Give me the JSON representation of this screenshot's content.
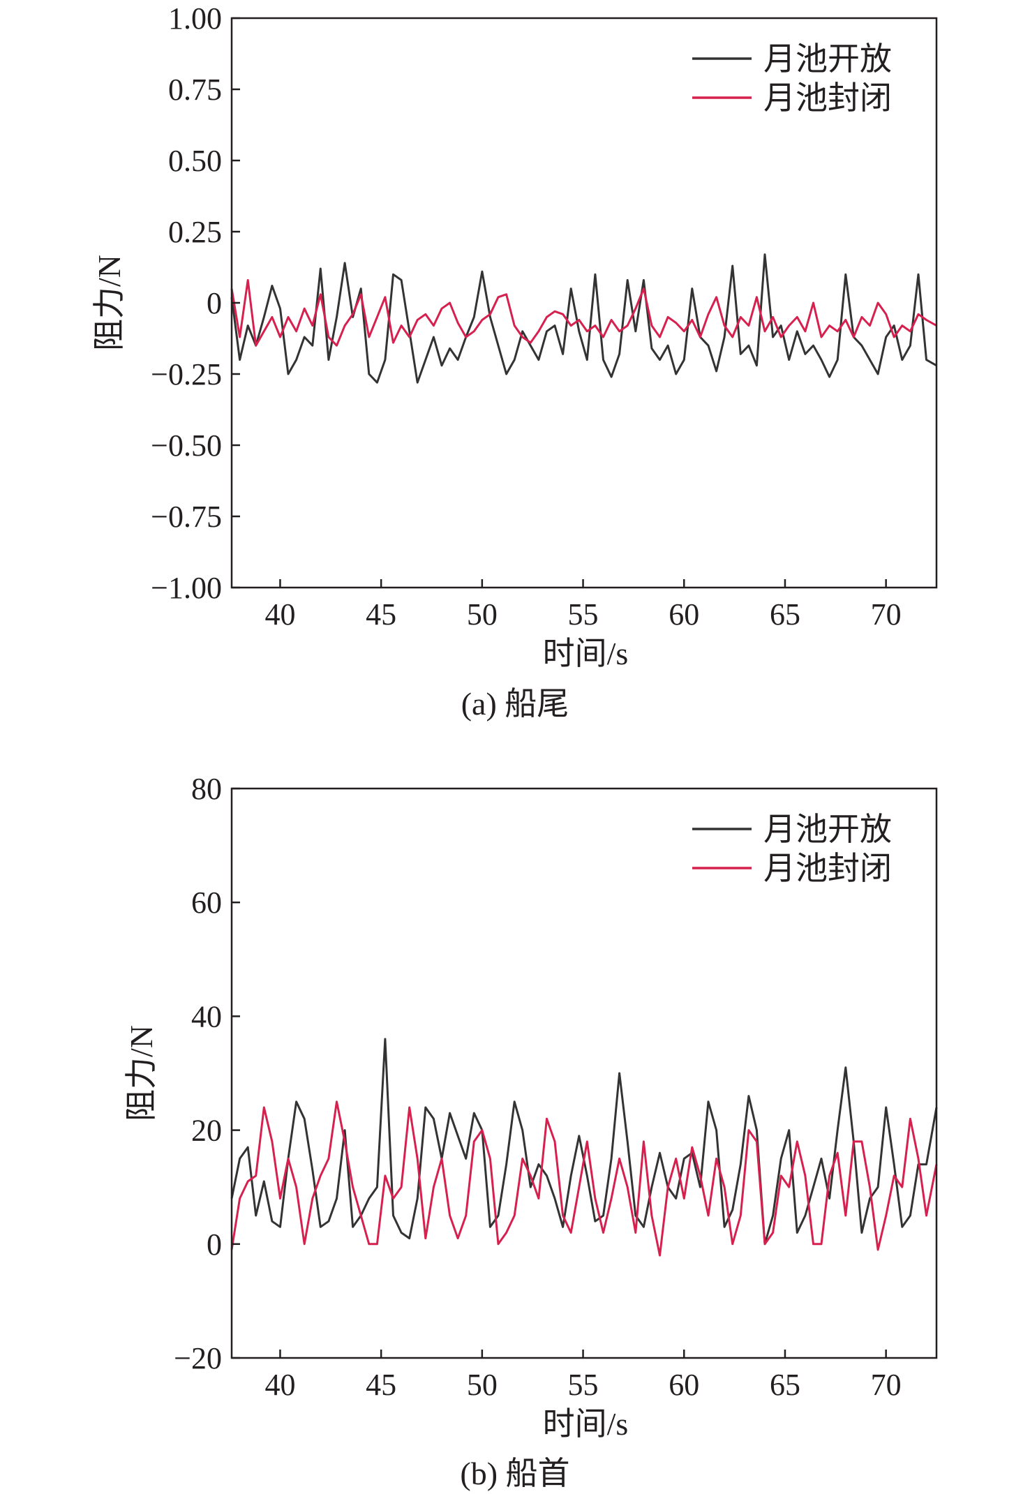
{
  "chart_data": [
    {
      "type": "line",
      "caption": "(a) 船尾",
      "xlabel": "时间/s",
      "ylabel": "阻力/N",
      "xlim": [
        37.6,
        72.5
      ],
      "ylim": [
        -1.0,
        1.0
      ],
      "xticks": [
        40,
        45,
        50,
        55,
        60,
        65,
        70
      ],
      "yticks": [
        1.0,
        0.75,
        0.5,
        0.25,
        0,
        -0.25,
        -0.5,
        -0.75,
        -1.0
      ],
      "ytick_labels": [
        "1.00",
        "0.75",
        "0.50",
        "0.25",
        "0",
        "−0.25",
        "−0.50",
        "−0.75",
        "−1.00"
      ],
      "legend": "top-right",
      "grid": false,
      "series": [
        {
          "name": "月池开放",
          "color": "#333333",
          "x": [
            37.6,
            38.0,
            38.4,
            38.8,
            39.2,
            39.6,
            40.0,
            40.4,
            40.8,
            41.2,
            41.6,
            42.0,
            42.4,
            42.8,
            43.2,
            43.6,
            44.0,
            44.4,
            44.8,
            45.2,
            45.6,
            46.0,
            46.4,
            46.8,
            47.2,
            47.6,
            48.0,
            48.4,
            48.8,
            49.2,
            49.6,
            50.0,
            50.4,
            50.8,
            51.2,
            51.6,
            52.0,
            52.4,
            52.8,
            53.2,
            53.6,
            54.0,
            54.4,
            54.8,
            55.2,
            55.6,
            56.0,
            56.4,
            56.8,
            57.2,
            57.6,
            58.0,
            58.4,
            58.8,
            59.2,
            59.6,
            60.0,
            60.4,
            60.8,
            61.2,
            61.6,
            62.0,
            62.4,
            62.8,
            63.2,
            63.6,
            64.0,
            64.4,
            64.8,
            65.2,
            65.6,
            66.0,
            66.4,
            66.8,
            67.2,
            67.6,
            68.0,
            68.4,
            68.8,
            69.2,
            69.6,
            70.0,
            70.4,
            70.8,
            71.2,
            71.6,
            72.0,
            72.5
          ],
          "values": [
            0.02,
            -0.2,
            -0.08,
            -0.15,
            -0.05,
            0.06,
            -0.02,
            -0.25,
            -0.2,
            -0.12,
            -0.15,
            0.12,
            -0.2,
            -0.05,
            0.14,
            -0.05,
            0.05,
            -0.25,
            -0.28,
            -0.2,
            0.1,
            0.08,
            -0.1,
            -0.28,
            -0.2,
            -0.12,
            -0.22,
            -0.16,
            -0.2,
            -0.12,
            -0.05,
            0.11,
            -0.05,
            -0.15,
            -0.25,
            -0.2,
            -0.1,
            -0.15,
            -0.2,
            -0.1,
            -0.08,
            -0.18,
            0.05,
            -0.1,
            -0.2,
            0.1,
            -0.2,
            -0.26,
            -0.18,
            0.08,
            -0.1,
            0.08,
            -0.16,
            -0.2,
            -0.15,
            -0.25,
            -0.2,
            0.05,
            -0.12,
            -0.15,
            -0.24,
            -0.12,
            0.13,
            -0.18,
            -0.15,
            -0.22,
            0.17,
            -0.12,
            -0.08,
            -0.2,
            -0.1,
            -0.18,
            -0.15,
            -0.2,
            -0.26,
            -0.2,
            0.1,
            -0.12,
            -0.15,
            -0.2,
            -0.25,
            -0.12,
            -0.08,
            -0.2,
            -0.15,
            0.1,
            -0.2,
            -0.22
          ]
        },
        {
          "name": "月池封闭",
          "color": "#d6204e",
          "x": [
            37.6,
            38.0,
            38.4,
            38.8,
            39.2,
            39.6,
            40.0,
            40.4,
            40.8,
            41.2,
            41.6,
            42.0,
            42.4,
            42.8,
            43.2,
            43.6,
            44.0,
            44.4,
            44.8,
            45.2,
            45.6,
            46.0,
            46.4,
            46.8,
            47.2,
            47.6,
            48.0,
            48.4,
            48.8,
            49.2,
            49.6,
            50.0,
            50.4,
            50.8,
            51.2,
            51.6,
            52.0,
            52.4,
            52.8,
            53.2,
            53.6,
            54.0,
            54.4,
            54.8,
            55.2,
            55.6,
            56.0,
            56.4,
            56.8,
            57.2,
            57.6,
            58.0,
            58.4,
            58.8,
            59.2,
            59.6,
            60.0,
            60.4,
            60.8,
            61.2,
            61.6,
            62.0,
            62.4,
            62.8,
            63.2,
            63.6,
            64.0,
            64.4,
            64.8,
            65.2,
            65.6,
            66.0,
            66.4,
            66.8,
            67.2,
            67.6,
            68.0,
            68.4,
            68.8,
            69.2,
            69.6,
            70.0,
            70.4,
            70.8,
            71.2,
            71.6,
            72.0,
            72.5
          ],
          "values": [
            0.05,
            -0.12,
            0.08,
            -0.15,
            -0.1,
            -0.05,
            -0.12,
            -0.05,
            -0.1,
            -0.02,
            -0.08,
            0.03,
            -0.12,
            -0.15,
            -0.08,
            -0.04,
            0.03,
            -0.12,
            -0.05,
            0.02,
            -0.14,
            -0.08,
            -0.12,
            -0.06,
            -0.04,
            -0.08,
            -0.02,
            0.0,
            -0.07,
            -0.12,
            -0.1,
            -0.06,
            -0.04,
            0.02,
            0.03,
            -0.08,
            -0.12,
            -0.14,
            -0.1,
            -0.05,
            -0.03,
            -0.04,
            -0.08,
            -0.06,
            -0.1,
            -0.08,
            -0.12,
            -0.06,
            -0.1,
            -0.08,
            -0.02,
            0.05,
            -0.08,
            -0.12,
            -0.05,
            -0.07,
            -0.1,
            -0.06,
            -0.12,
            -0.04,
            0.02,
            -0.08,
            -0.12,
            -0.05,
            -0.08,
            0.02,
            -0.1,
            -0.05,
            -0.12,
            -0.08,
            -0.05,
            -0.1,
            0.0,
            -0.12,
            -0.08,
            -0.1,
            -0.06,
            -0.12,
            -0.05,
            -0.08,
            0.0,
            -0.04,
            -0.12,
            -0.08,
            -0.1,
            -0.04,
            -0.06,
            -0.08
          ]
        }
      ]
    },
    {
      "type": "line",
      "caption": "(b) 船首",
      "xlabel": "时间/s",
      "ylabel": "阻力/N",
      "xlim": [
        37.6,
        72.5
      ],
      "ylim": [
        -20,
        80
      ],
      "xticks": [
        40,
        45,
        50,
        55,
        60,
        65,
        70
      ],
      "yticks": [
        80,
        60,
        40,
        20,
        0,
        -20
      ],
      "ytick_labels": [
        "80",
        "60",
        "40",
        "20",
        "0",
        "−20"
      ],
      "legend": "top-right",
      "grid": false,
      "series": [
        {
          "name": "月池开放",
          "color": "#333333",
          "x": [
            37.6,
            38.0,
            38.4,
            38.8,
            39.2,
            39.6,
            40.0,
            40.4,
            40.8,
            41.2,
            41.6,
            42.0,
            42.4,
            42.8,
            43.2,
            43.6,
            44.0,
            44.4,
            44.8,
            45.2,
            45.6,
            46.0,
            46.4,
            46.8,
            47.2,
            47.6,
            48.0,
            48.4,
            48.8,
            49.2,
            49.6,
            50.0,
            50.4,
            50.8,
            51.2,
            51.6,
            52.0,
            52.4,
            52.8,
            53.2,
            53.6,
            54.0,
            54.4,
            54.8,
            55.2,
            55.6,
            56.0,
            56.4,
            56.8,
            57.2,
            57.6,
            58.0,
            58.4,
            58.8,
            59.2,
            59.6,
            60.0,
            60.4,
            60.8,
            61.2,
            61.6,
            62.0,
            62.4,
            62.8,
            63.2,
            63.6,
            64.0,
            64.4,
            64.8,
            65.2,
            65.6,
            66.0,
            66.4,
            66.8,
            67.2,
            67.6,
            68.0,
            68.4,
            68.8,
            69.2,
            69.6,
            70.0,
            70.4,
            70.8,
            71.2,
            71.6,
            72.0,
            72.5
          ],
          "values": [
            8,
            15,
            17,
            5,
            11,
            4,
            3,
            15,
            25,
            22,
            13,
            3,
            4,
            8,
            20,
            3,
            5,
            8,
            10,
            36,
            5,
            2,
            1,
            8,
            24,
            22,
            15,
            23,
            19,
            15,
            23,
            20,
            3,
            5,
            14,
            25,
            20,
            10,
            14,
            12,
            8,
            3,
            12,
            19,
            12,
            4,
            5,
            15,
            30,
            18,
            5,
            3,
            10,
            16,
            10,
            8,
            15,
            16,
            10,
            25,
            20,
            3,
            6,
            14,
            26,
            20,
            0,
            5,
            15,
            20,
            2,
            5,
            10,
            15,
            8,
            20,
            31,
            18,
            2,
            8,
            10,
            24,
            14,
            3,
            5,
            14,
            14,
            24
          ]
        },
        {
          "name": "月池封闭",
          "color": "#d6204e",
          "x": [
            37.6,
            38.0,
            38.4,
            38.8,
            39.2,
            39.6,
            40.0,
            40.4,
            40.8,
            41.2,
            41.6,
            42.0,
            42.4,
            42.8,
            43.2,
            43.6,
            44.0,
            44.4,
            44.8,
            45.2,
            45.6,
            46.0,
            46.4,
            46.8,
            47.2,
            47.6,
            48.0,
            48.4,
            48.8,
            49.2,
            49.6,
            50.0,
            50.4,
            50.8,
            51.2,
            51.6,
            52.0,
            52.4,
            52.8,
            53.2,
            53.6,
            54.0,
            54.4,
            54.8,
            55.2,
            55.6,
            56.0,
            56.4,
            56.8,
            57.2,
            57.6,
            58.0,
            58.4,
            58.8,
            59.2,
            59.6,
            60.0,
            60.4,
            60.8,
            61.2,
            61.6,
            62.0,
            62.4,
            62.8,
            63.2,
            63.6,
            64.0,
            64.4,
            64.8,
            65.2,
            65.6,
            66.0,
            66.4,
            66.8,
            67.2,
            67.6,
            68.0,
            68.4,
            68.8,
            69.2,
            69.6,
            70.0,
            70.4,
            70.8,
            71.2,
            71.6,
            72.0,
            72.5
          ],
          "values": [
            -1,
            8,
            11,
            12,
            24,
            18,
            8,
            15,
            10,
            0,
            8,
            12,
            15,
            25,
            18,
            10,
            5,
            0,
            0,
            12,
            8,
            10,
            24,
            15,
            1,
            10,
            15,
            5,
            1,
            5,
            18,
            20,
            15,
            0,
            2,
            5,
            15,
            12,
            8,
            22,
            18,
            5,
            2,
            10,
            18,
            8,
            2,
            8,
            15,
            10,
            2,
            18,
            5,
            -2,
            10,
            15,
            8,
            17,
            12,
            5,
            15,
            10,
            0,
            5,
            20,
            18,
            0,
            2,
            12,
            10,
            18,
            12,
            0,
            0,
            12,
            16,
            5,
            18,
            18,
            10,
            -1,
            5,
            12,
            10,
            22,
            15,
            5,
            14
          ]
        }
      ]
    }
  ]
}
